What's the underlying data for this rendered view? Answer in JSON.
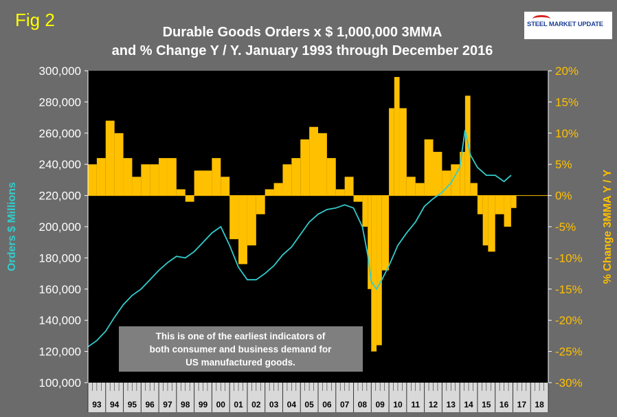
{
  "figure_label": "Fig 2",
  "logo_text": "STEEL MARKET UPDATE",
  "colors": {
    "bars": "#ffc000",
    "line": "#33cccc",
    "plot_bg": "#000000",
    "axis_text": "#ffffff",
    "right_axis_text": "#ffc000"
  },
  "chart_data": {
    "type": "bar",
    "title_lines": [
      "Durable Goods Orders x $ 1,000,000 3MMA",
      "and % Change Y / Y. January 1993 through December 2016"
    ],
    "ylabel": "Orders $ Millions",
    "y2label": "% Change 3MMA Y / Y",
    "ylim": [
      100000,
      300000
    ],
    "y2lim": [
      -30,
      20
    ],
    "yticks": [
      "100,000",
      "120,000",
      "140,000",
      "160,000",
      "180,000",
      "200,000",
      "220,000",
      "240,000",
      "260,000",
      "280,000",
      "300,000"
    ],
    "y2ticks": [
      "-30%",
      "-25%",
      "-20%",
      "-15%",
      "-10%",
      "-5%",
      "0%",
      "5%",
      "10%",
      "15%",
      "20%"
    ],
    "x_categories": [
      "93",
      "94",
      "95",
      "96",
      "97",
      "98",
      "99",
      "00",
      "01",
      "02",
      "03",
      "04",
      "05",
      "06",
      "07",
      "08",
      "09",
      "10",
      "11",
      "12",
      "13",
      "14",
      "15",
      "16",
      "17",
      "18"
    ],
    "grid": false,
    "annotation": "This is one of the earliest indicators of both consumer and business demand for US manufactured goods.",
    "series": [
      {
        "name": "Orders $ Millions (3MMA)",
        "type": "line",
        "axis": "left",
        "x": [
          1993.0,
          1993.5,
          1994.0,
          1994.5,
          1995.0,
          1995.5,
          1996.0,
          1996.5,
          1997.0,
          1997.5,
          1998.0,
          1998.5,
          1999.0,
          1999.5,
          2000.0,
          2000.5,
          2001.0,
          2001.5,
          2002.0,
          2002.5,
          2003.0,
          2003.5,
          2004.0,
          2004.5,
          2005.0,
          2005.5,
          2006.0,
          2006.5,
          2007.0,
          2007.5,
          2008.0,
          2008.5,
          2008.8,
          2009.0,
          2009.3,
          2009.6,
          2010.0,
          2010.5,
          2011.0,
          2011.5,
          2012.0,
          2012.5,
          2013.0,
          2013.5,
          2014.0,
          2014.3,
          2014.6,
          2015.0,
          2015.5,
          2016.0,
          2016.5,
          2016.9
        ],
        "values": [
          123000,
          127000,
          133000,
          142000,
          150000,
          156000,
          160000,
          166000,
          172000,
          177000,
          181000,
          180000,
          184000,
          190000,
          196000,
          200000,
          188000,
          174000,
          166000,
          166000,
          170000,
          175000,
          182000,
          187000,
          195000,
          203000,
          208000,
          211000,
          212000,
          214000,
          212000,
          200000,
          182000,
          165000,
          160000,
          166000,
          175000,
          188000,
          196000,
          203000,
          213000,
          218000,
          222000,
          228000,
          238000,
          262000,
          246000,
          238000,
          233000,
          233000,
          229000,
          233000
        ]
      },
      {
        "name": "% Change 3MMA Y / Y",
        "type": "bar",
        "axis": "right",
        "x": [
          1993.0,
          1993.5,
          1994.0,
          1994.5,
          1995.0,
          1995.5,
          1996.0,
          1996.5,
          1997.0,
          1997.5,
          1998.0,
          1998.5,
          1999.0,
          1999.5,
          2000.0,
          2000.5,
          2001.0,
          2001.5,
          2002.0,
          2002.5,
          2003.0,
          2003.5,
          2004.0,
          2004.5,
          2005.0,
          2005.5,
          2006.0,
          2006.5,
          2007.0,
          2007.5,
          2008.0,
          2008.5,
          2008.8,
          2009.0,
          2009.3,
          2009.6,
          2010.0,
          2010.3,
          2010.6,
          2011.0,
          2011.5,
          2012.0,
          2012.5,
          2013.0,
          2013.5,
          2014.0,
          2014.3,
          2014.6,
          2015.0,
          2015.3,
          2015.6,
          2016.0,
          2016.5,
          2016.9
        ],
        "values": [
          5,
          6,
          12,
          10,
          6,
          3,
          5,
          5,
          6,
          6,
          1,
          -1,
          4,
          4,
          6,
          3,
          -7,
          -11,
          -8,
          -3,
          1,
          2,
          5,
          6,
          9,
          11,
          10,
          6,
          1,
          3,
          -1,
          -5,
          -15,
          -25,
          -24,
          -12,
          14,
          19,
          14,
          3,
          2,
          9,
          7,
          4,
          5,
          7,
          16,
          2,
          -3,
          -8,
          -9,
          -3,
          -5,
          -2
        ]
      }
    ]
  }
}
